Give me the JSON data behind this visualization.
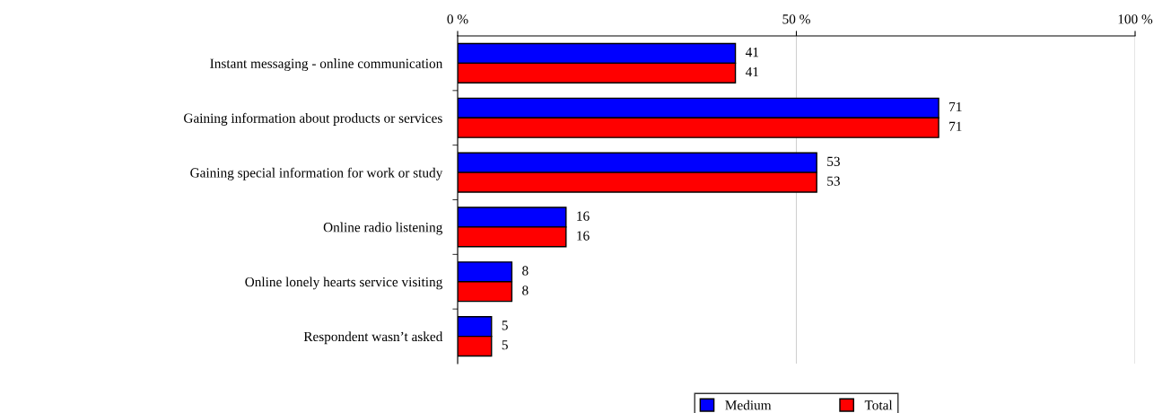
{
  "chart_data": {
    "type": "bar",
    "orientation": "horizontal",
    "categories": [
      "Instant messaging - online communication",
      "Gaining information about products or services",
      "Gaining special information for work or study",
      "Online radio listening",
      "Online lonely hearts service visiting",
      "Respondent wasn’t asked"
    ],
    "series": [
      {
        "name": "Medium",
        "color": "#0000ff",
        "values": [
          41,
          71,
          53,
          16,
          8,
          5
        ]
      },
      {
        "name": "Total",
        "color": "#ff0000",
        "values": [
          41,
          71,
          53,
          16,
          8,
          5
        ]
      }
    ],
    "xlim": [
      0,
      100
    ],
    "xticks": [
      {
        "value": 0,
        "label": "0 %"
      },
      {
        "value": 50,
        "label": "50 %"
      },
      {
        "value": 100,
        "label": "100 %"
      }
    ],
    "grid": "x",
    "legend": "bottom",
    "data_labels": true
  }
}
